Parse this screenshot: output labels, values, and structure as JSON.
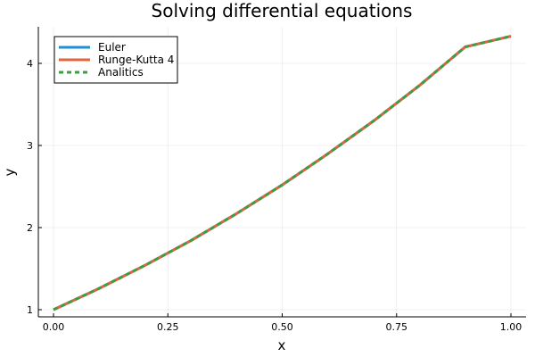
{
  "chart_data": {
    "type": "line",
    "title": "Solving differential equations",
    "xlabel": "x",
    "ylabel": "y",
    "xlim": [
      0,
      1
    ],
    "ylim": [
      1,
      4.33
    ],
    "xticks": [
      0,
      0.25,
      0.5,
      0.75,
      1
    ],
    "xtick_labels": [
      "0.00",
      "0.25",
      "0.50",
      "0.75",
      "1.00"
    ],
    "yticks": [
      1,
      2,
      3,
      4
    ],
    "ytick_labels": [
      "1",
      "2",
      "3",
      "4"
    ],
    "grid": true,
    "legend_position": "top-left",
    "x": [
      0,
      0.1,
      0.2,
      0.3,
      0.4,
      0.5,
      0.6,
      0.7,
      0.8,
      0.9,
      1.0
    ],
    "series": [
      {
        "name": "Euler",
        "color": "#1f8fd6",
        "style": "solid",
        "values": [
          1.0,
          1.26,
          1.54,
          1.84,
          2.17,
          2.52,
          2.9,
          3.3,
          3.73,
          4.2,
          4.33
        ]
      },
      {
        "name": "Runge-Kutta 4",
        "color": "#e0643c",
        "style": "solid",
        "values": [
          1.0,
          1.26,
          1.54,
          1.84,
          2.17,
          2.52,
          2.9,
          3.3,
          3.73,
          4.2,
          4.33
        ]
      },
      {
        "name": "Analitics",
        "color": "#3a9e44",
        "style": "dashed",
        "values": [
          1.0,
          1.26,
          1.54,
          1.84,
          2.17,
          2.52,
          2.9,
          3.3,
          3.73,
          4.2,
          4.33
        ]
      }
    ]
  }
}
